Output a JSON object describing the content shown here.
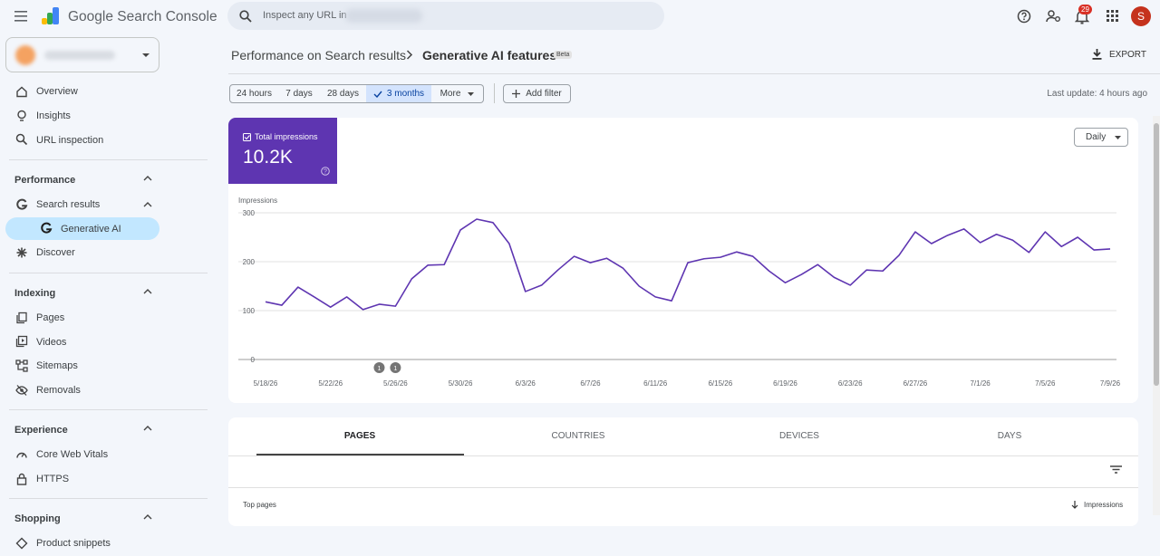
{
  "header": {
    "product": "Google Search Console",
    "search_placeholder": "Inspect any URL in",
    "notifications": "29",
    "avatar": "S"
  },
  "sidebar": {
    "sections": [
      {
        "items": [
          "Overview",
          "Insights",
          "URL inspection"
        ]
      },
      {
        "heading": "Performance",
        "items": [
          "Search results",
          "Generative AI",
          "Discover"
        ]
      },
      {
        "heading": "Indexing",
        "items": [
          "Pages",
          "Videos",
          "Sitemaps",
          "Removals"
        ]
      },
      {
        "heading": "Experience",
        "items": [
          "Core Web Vitals",
          "HTTPS"
        ]
      },
      {
        "heading": "Shopping",
        "items": [
          "Product snippets"
        ]
      }
    ]
  },
  "toolbar": {
    "breadcrumb": [
      "Performance on Search results",
      "Generative AI features"
    ],
    "badge": "Beta",
    "export": "EXPORT",
    "date_ranges": [
      "24 hours",
      "7 days",
      "28 days",
      "3 months",
      "More"
    ],
    "add_filter": "Add filter",
    "last_update": "Last update: 4 hours ago"
  },
  "metric": {
    "label": "Total impressions",
    "value": "10.2K"
  },
  "chart_data": {
    "type": "line",
    "y_label": "Impressions",
    "granularity": "Daily",
    "color": "#5e35b1",
    "categories": [
      "5/18/26",
      null,
      null,
      null,
      "5/22/26",
      null,
      null,
      null,
      "5/26/26",
      null,
      null,
      null,
      "5/30/26",
      null,
      null,
      null,
      "6/3/26",
      null,
      null,
      null,
      "6/7/26",
      null,
      null,
      null,
      "6/11/26",
      null,
      null,
      null,
      "6/15/26",
      null,
      null,
      null,
      "6/19/26",
      null,
      null,
      null,
      "6/23/26",
      null,
      null,
      null,
      "6/27/26",
      null,
      null,
      null,
      "7/1/26",
      null,
      null,
      null,
      "7/5/26",
      null,
      null,
      null,
      "7/9/26"
    ],
    "values": [
      118,
      111,
      148,
      128,
      107,
      128,
      102,
      113,
      109,
      165,
      193,
      194,
      265,
      287,
      280,
      237,
      139,
      152,
      183,
      211,
      198,
      207,
      187,
      150,
      128,
      120,
      198,
      206,
      209,
      220,
      211,
      181,
      157,
      174,
      194,
      168,
      152,
      183,
      181,
      213,
      261,
      237,
      254,
      267,
      239,
      256,
      244,
      219,
      261,
      231,
      250,
      224,
      226
    ],
    "annotations": [
      {
        "label": "1",
        "index": 7
      },
      {
        "label": "1",
        "index": 8
      }
    ],
    "ylim": [
      0,
      300
    ],
    "yticks": [
      0,
      100,
      200,
      300
    ],
    "grid": true
  },
  "table": {
    "tabs": [
      "PAGES",
      "COUNTRIES",
      "DEVICES",
      "DAYS"
    ],
    "column_title": "Top pages",
    "sort_column": "Impressions"
  }
}
